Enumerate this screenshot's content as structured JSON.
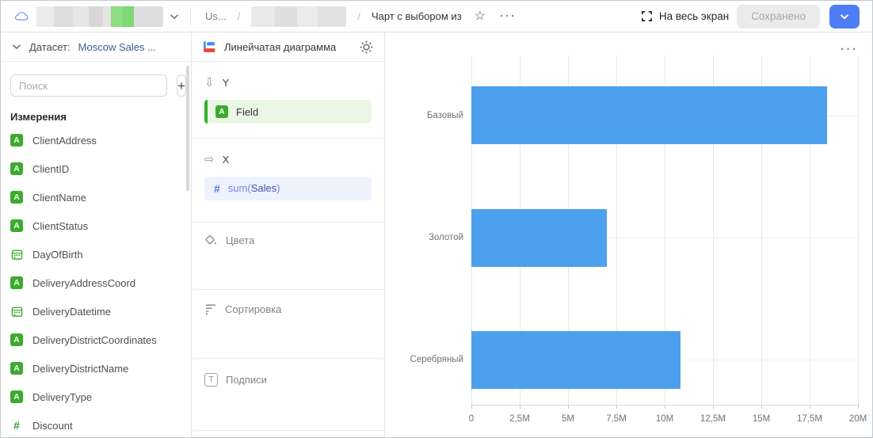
{
  "header": {
    "breadcrumb_prefix": "Us...",
    "separator": "/",
    "breadcrumb_current": "Чарт с выбором из",
    "fullscreen_label": "На весь экран",
    "saved_button": "Сохранено"
  },
  "icons": {
    "star_glyph": "☆",
    "dots_glyph": "···",
    "arrow_down_glyph": "⇩",
    "arrow_right_glyph": "⇨",
    "string_glyph": "A",
    "number_glyph": "#",
    "text_label_glyph": "T"
  },
  "sidebar": {
    "dataset_label": "Датасет:",
    "dataset_name": "Moscow Sales ...",
    "search_placeholder": "Поиск",
    "add_button": "+",
    "section_title": "Измерения",
    "fields": [
      {
        "label": "ClientAddress",
        "type": "string"
      },
      {
        "label": "ClientID",
        "type": "string"
      },
      {
        "label": "ClientName",
        "type": "string"
      },
      {
        "label": "ClientStatus",
        "type": "string"
      },
      {
        "label": "DayOfBirth",
        "type": "date"
      },
      {
        "label": "DeliveryAddressCoord",
        "type": "string"
      },
      {
        "label": "DeliveryDatetime",
        "type": "date"
      },
      {
        "label": "DeliveryDistrictCoordinates",
        "type": "string"
      },
      {
        "label": "DeliveryDistrictName",
        "type": "string"
      },
      {
        "label": "DeliveryType",
        "type": "string"
      },
      {
        "label": "Discount",
        "type": "number"
      }
    ]
  },
  "editor": {
    "chart_type": "Линейчатая диаграмма",
    "shelf_y": {
      "label": "Y",
      "field": "Field"
    },
    "shelf_x": {
      "label": "X",
      "func_open": "sum(",
      "field": "Sales",
      "close": ")"
    },
    "zone_colors": "Цвета",
    "zone_sort": "Сортировка",
    "zone_labels": "Подписи"
  },
  "chart_data": {
    "type": "bar",
    "orientation": "horizontal",
    "categories": [
      "Базовый",
      "Золотой",
      "Серебряный"
    ],
    "values": [
      18400000,
      7000000,
      10800000
    ],
    "series_name": "sum(Sales)",
    "title": "",
    "xlabel": "",
    "ylabel": "",
    "xlim": [
      0,
      20000000
    ],
    "x_ticks": [
      "0",
      "2,5M",
      "5M",
      "7,5M",
      "10M",
      "12,5M",
      "15M",
      "17,5M",
      "20M"
    ],
    "grid": true,
    "legend": false,
    "bar_color": "#4da0ee"
  },
  "colors": {
    "accent_blue": "#4e7ef5",
    "field_green": "#3cab2f",
    "pill_green_bg": "#e9f7e4",
    "pill_blue_bg": "#eef2fc",
    "bar_blue": "#4da0ee",
    "dataset_link": "#33629c"
  }
}
